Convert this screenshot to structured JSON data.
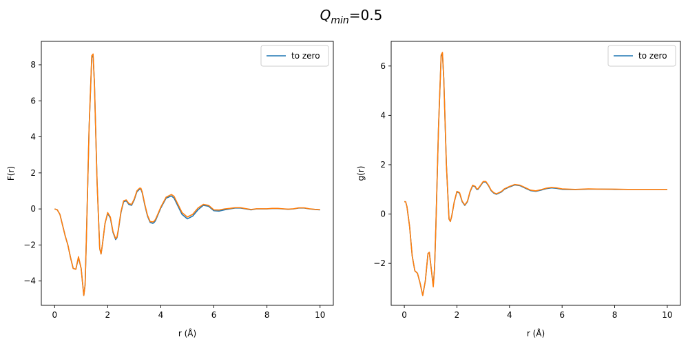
{
  "suptitle": {
    "main": "Q",
    "sub": "min",
    "rest": "=0.5"
  },
  "colors": {
    "series_blue": "#1f77b4",
    "series_orange": "#ff7f0e"
  },
  "chart_data": [
    {
      "type": "line",
      "xlabel": "r (Å)",
      "ylabel": "F(r)",
      "xlim": [
        -0.5,
        10.5
      ],
      "ylim": [
        -5.35,
        9.3
      ],
      "xticks": [
        0,
        2,
        4,
        6,
        8,
        10
      ],
      "yticks": [
        -4,
        -2,
        0,
        2,
        4,
        6,
        8
      ],
      "legend": {
        "position": "top-right",
        "entries": [
          "to zero"
        ]
      },
      "grid": false,
      "series": [
        {
          "name": "to zero",
          "color": "#1f77b4",
          "x": [
            0,
            0.1,
            0.2,
            0.3,
            0.4,
            0.5,
            0.6,
            0.7,
            0.8,
            0.9,
            1.0,
            1.1,
            1.15,
            1.2,
            1.3,
            1.4,
            1.45,
            1.5,
            1.6,
            1.7,
            1.75,
            1.8,
            1.9,
            2.0,
            2.1,
            2.2,
            2.3,
            2.35,
            2.4,
            2.5,
            2.6,
            2.7,
            2.75,
            2.8,
            2.9,
            3.0,
            3.1,
            3.2,
            3.25,
            3.3,
            3.4,
            3.5,
            3.6,
            3.7,
            3.75,
            3.8,
            3.9,
            4.0,
            4.2,
            4.4,
            4.5,
            4.6,
            4.8,
            5.0,
            5.2,
            5.4,
            5.6,
            5.8,
            6.0,
            6.2,
            6.4,
            6.6,
            6.8,
            7.0,
            7.2,
            7.4,
            7.6,
            7.8,
            8.0,
            8.2,
            8.4,
            8.6,
            8.8,
            9.0,
            9.2,
            9.4,
            9.6,
            9.8,
            10.0
          ],
          "y": [
            0,
            -0.05,
            -0.3,
            -0.9,
            -1.5,
            -2.0,
            -2.7,
            -3.3,
            -3.35,
            -2.7,
            -3.3,
            -4.8,
            -4.2,
            -1.5,
            4.5,
            8.4,
            8.5,
            7.0,
            1.5,
            -2.2,
            -2.5,
            -2.0,
            -0.8,
            -0.25,
            -0.5,
            -1.3,
            -1.7,
            -1.6,
            -1.2,
            -0.2,
            0.4,
            0.45,
            0.35,
            0.25,
            0.2,
            0.5,
            0.95,
            1.1,
            1.1,
            0.9,
            0.2,
            -0.4,
            -0.75,
            -0.8,
            -0.75,
            -0.65,
            -0.3,
            0.05,
            0.6,
            0.72,
            0.6,
            0.3,
            -0.3,
            -0.55,
            -0.4,
            -0.05,
            0.2,
            0.15,
            -0.1,
            -0.12,
            -0.05,
            0.0,
            0.05,
            0.05,
            0.0,
            -0.05,
            0.0,
            0.0,
            0.0,
            0.02,
            0.02,
            0.0,
            -0.02,
            0.0,
            0.05,
            0.05,
            0.0,
            -0.03,
            -0.05
          ]
        },
        {
          "name": "",
          "color": "#ff7f0e",
          "x": [
            0,
            0.1,
            0.2,
            0.3,
            0.4,
            0.5,
            0.6,
            0.7,
            0.8,
            0.9,
            1.0,
            1.1,
            1.15,
            1.2,
            1.3,
            1.4,
            1.45,
            1.5,
            1.6,
            1.7,
            1.75,
            1.8,
            1.9,
            2.0,
            2.1,
            2.2,
            2.3,
            2.35,
            2.4,
            2.5,
            2.6,
            2.7,
            2.75,
            2.8,
            2.9,
            3.0,
            3.1,
            3.2,
            3.25,
            3.3,
            3.4,
            3.5,
            3.6,
            3.7,
            3.75,
            3.8,
            3.9,
            4.0,
            4.2,
            4.4,
            4.5,
            4.6,
            4.8,
            5.0,
            5.2,
            5.4,
            5.6,
            5.8,
            6.0,
            6.2,
            6.4,
            6.6,
            6.8,
            7.0,
            7.2,
            7.4,
            7.6,
            7.8,
            8.0,
            8.2,
            8.4,
            8.6,
            8.8,
            9.0,
            9.2,
            9.4,
            9.6,
            9.8,
            10.0
          ],
          "y": [
            0,
            -0.05,
            -0.3,
            -0.9,
            -1.5,
            -2.0,
            -2.7,
            -3.3,
            -3.35,
            -2.65,
            -3.3,
            -4.8,
            -4.2,
            -1.5,
            4.5,
            8.5,
            8.6,
            7.0,
            1.5,
            -2.2,
            -2.5,
            -2.0,
            -0.8,
            -0.2,
            -0.45,
            -1.25,
            -1.65,
            -1.55,
            -1.15,
            -0.15,
            0.45,
            0.5,
            0.4,
            0.3,
            0.25,
            0.55,
            1.0,
            1.15,
            1.15,
            0.95,
            0.25,
            -0.35,
            -0.7,
            -0.72,
            -0.68,
            -0.58,
            -0.25,
            0.1,
            0.65,
            0.8,
            0.7,
            0.4,
            -0.2,
            -0.45,
            -0.3,
            0.05,
            0.25,
            0.2,
            -0.05,
            -0.06,
            0.0,
            0.03,
            0.07,
            0.07,
            0.02,
            -0.03,
            0.01,
            0.01,
            0.01,
            0.03,
            0.03,
            0.01,
            -0.01,
            0.01,
            0.06,
            0.06,
            0.01,
            -0.02,
            -0.04
          ]
        }
      ]
    },
    {
      "type": "line",
      "xlabel": "r (Å)",
      "ylabel": "g(r)",
      "xlim": [
        -0.5,
        10.5
      ],
      "ylim": [
        -3.7,
        7.0
      ],
      "xticks": [
        0,
        2,
        4,
        6,
        8,
        10
      ],
      "yticks": [
        -2,
        0,
        2,
        4,
        6
      ],
      "legend": {
        "position": "top-right",
        "entries": [
          "to zero"
        ]
      },
      "grid": false,
      "series": [
        {
          "name": "to zero",
          "color": "#1f77b4",
          "x": [
            0,
            0.05,
            0.1,
            0.2,
            0.3,
            0.4,
            0.5,
            0.6,
            0.7,
            0.8,
            0.9,
            0.95,
            1.0,
            1.1,
            1.15,
            1.2,
            1.3,
            1.4,
            1.45,
            1.5,
            1.6,
            1.7,
            1.75,
            1.8,
            1.9,
            2.0,
            2.1,
            2.2,
            2.3,
            2.4,
            2.5,
            2.6,
            2.7,
            2.75,
            2.8,
            2.9,
            3.0,
            3.1,
            3.2,
            3.3,
            3.4,
            3.5,
            3.6,
            3.7,
            3.8,
            4.0,
            4.2,
            4.4,
            4.6,
            4.8,
            5.0,
            5.2,
            5.4,
            5.6,
            5.8,
            6.0,
            6.5,
            7.0,
            7.5,
            8.0,
            8.5,
            9.0,
            9.5,
            10.0
          ],
          "y": [
            0.5,
            0.5,
            0.3,
            -0.5,
            -1.7,
            -2.3,
            -2.4,
            -2.8,
            -3.3,
            -2.7,
            -1.6,
            -1.55,
            -2.0,
            -2.9,
            -2.2,
            -0.5,
            3.5,
            6.4,
            6.5,
            5.5,
            2.0,
            -0.2,
            -0.3,
            -0.1,
            0.5,
            0.9,
            0.85,
            0.5,
            0.35,
            0.5,
            0.9,
            1.15,
            1.1,
            1.0,
            1.0,
            1.15,
            1.3,
            1.3,
            1.15,
            0.95,
            0.85,
            0.8,
            0.85,
            0.9,
            1.0,
            1.1,
            1.18,
            1.15,
            1.05,
            0.95,
            0.92,
            0.97,
            1.03,
            1.06,
            1.04,
            1.0,
            0.99,
            1.01,
            1.01,
            1.0,
            1.0,
            1.0,
            1.0,
            1.0
          ]
        },
        {
          "name": "",
          "color": "#ff7f0e",
          "x": [
            0,
            0.05,
            0.1,
            0.2,
            0.3,
            0.4,
            0.5,
            0.6,
            0.7,
            0.8,
            0.9,
            0.95,
            1.0,
            1.1,
            1.15,
            1.2,
            1.3,
            1.4,
            1.45,
            1.5,
            1.6,
            1.7,
            1.75,
            1.8,
            1.9,
            2.0,
            2.1,
            2.2,
            2.3,
            2.4,
            2.5,
            2.6,
            2.7,
            2.75,
            2.8,
            2.9,
            3.0,
            3.1,
            3.2,
            3.3,
            3.4,
            3.5,
            3.6,
            3.7,
            3.8,
            4.0,
            4.2,
            4.4,
            4.6,
            4.8,
            5.0,
            5.2,
            5.4,
            5.6,
            5.8,
            6.0,
            6.5,
            7.0,
            7.5,
            8.0,
            8.5,
            9.0,
            9.5,
            10.0
          ],
          "y": [
            0.5,
            0.5,
            0.3,
            -0.5,
            -1.7,
            -2.3,
            -2.4,
            -2.8,
            -3.3,
            -2.7,
            -1.6,
            -1.55,
            -2.0,
            -2.95,
            -2.2,
            -0.5,
            3.5,
            6.45,
            6.55,
            5.5,
            2.0,
            -0.2,
            -0.3,
            -0.1,
            0.5,
            0.92,
            0.87,
            0.52,
            0.37,
            0.52,
            0.92,
            1.17,
            1.12,
            1.02,
            1.02,
            1.17,
            1.32,
            1.32,
            1.17,
            0.97,
            0.87,
            0.82,
            0.87,
            0.92,
            1.02,
            1.12,
            1.2,
            1.17,
            1.07,
            0.97,
            0.94,
            0.99,
            1.05,
            1.08,
            1.06,
            1.02,
            1.0,
            1.02,
            1.01,
            1.01,
            1.0,
            1.0,
            1.0,
            1.0
          ]
        }
      ]
    }
  ]
}
